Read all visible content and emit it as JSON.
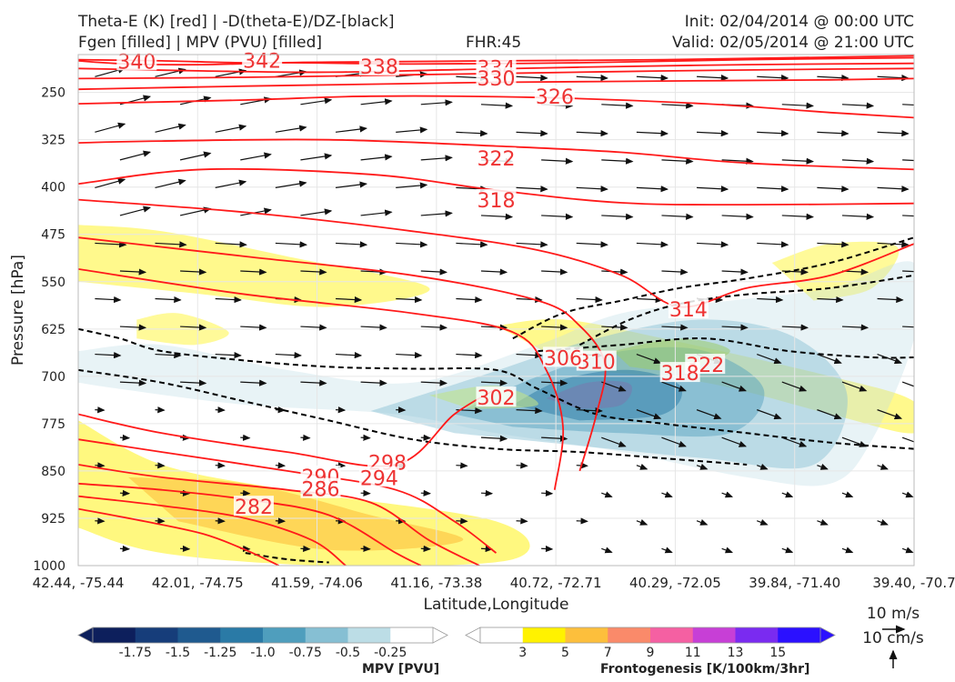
{
  "header": {
    "title_line1": "Theta-E (K) [red] | -D(theta-E)/DZ-[black]",
    "title_line2": "Fgen [filled] | MPV (PVU) [filled]",
    "fhr": "FHR:45",
    "init": "Init: 02/04/2014 @ 00:00 UTC",
    "valid": "Valid: 02/05/2014 @ 21:00 UTC"
  },
  "chart_data": {
    "type": "cross-section",
    "xlabel": "Latitude,Longitude",
    "ylabel": "Pressure [hPa]",
    "x_ticks": [
      "42.44, -75.44",
      "42.01, -74.75",
      "41.59, -74.06",
      "41.16, -73.38",
      "40.72, -72.71",
      "40.29, -72.05",
      "39.84, -71.40",
      "39.40, -70.7"
    ],
    "y_ticks": [
      250,
      325,
      400,
      475,
      550,
      625,
      700,
      775,
      850,
      925,
      1000
    ],
    "ylim": [
      190,
      1000
    ],
    "y_inverted": true,
    "grid": true,
    "theta_e_contours": [
      {
        "value": 340,
        "label": "340",
        "points": [
          [
            0.0,
            200
          ],
          [
            0.06,
            205
          ],
          [
            0.15,
            206
          ],
          [
            0.25,
            203
          ],
          [
            0.4,
            205
          ],
          [
            0.6,
            203
          ],
          [
            0.8,
            198
          ],
          [
            1.0,
            195
          ]
        ]
      },
      {
        "value": 342,
        "label": "342",
        "points": [
          [
            0.0,
            198
          ],
          [
            0.1,
            200
          ],
          [
            0.2,
            203
          ],
          [
            0.3,
            202
          ],
          [
            0.5,
            200
          ],
          [
            0.7,
            198
          ],
          [
            1.0,
            192
          ]
        ]
      },
      {
        "value": 338,
        "label": "338",
        "points": [
          [
            0.0,
            212
          ],
          [
            0.15,
            216
          ],
          [
            0.3,
            218
          ],
          [
            0.45,
            214
          ],
          [
            0.6,
            210
          ],
          [
            0.8,
            206
          ],
          [
            1.0,
            204
          ]
        ]
      },
      {
        "value": 334,
        "label": "334",
        "points": [
          [
            0.0,
            228
          ],
          [
            0.2,
            226
          ],
          [
            0.4,
            222
          ],
          [
            0.5,
            220
          ],
          [
            0.7,
            216
          ],
          [
            0.9,
            213
          ],
          [
            1.0,
            212
          ]
        ]
      },
      {
        "value": 330,
        "label": "330",
        "points": [
          [
            0.0,
            245
          ],
          [
            0.2,
            240
          ],
          [
            0.4,
            236
          ],
          [
            0.5,
            234
          ],
          [
            0.7,
            232
          ],
          [
            0.9,
            230
          ],
          [
            1.0,
            228
          ]
        ]
      },
      {
        "value": 326,
        "label": "326",
        "points": [
          [
            0.0,
            268
          ],
          [
            0.2,
            262
          ],
          [
            0.35,
            256
          ],
          [
            0.55,
            258
          ],
          [
            0.75,
            268
          ],
          [
            0.9,
            282
          ],
          [
            1.0,
            290
          ]
        ]
      },
      {
        "value": 322,
        "label": "322",
        "points": [
          [
            0.0,
            330
          ],
          [
            0.1,
            327
          ],
          [
            0.3,
            325
          ],
          [
            0.5,
            335
          ],
          [
            0.65,
            345
          ],
          [
            0.8,
            362
          ],
          [
            1.0,
            372
          ]
        ]
      },
      {
        "value": 318,
        "label": "318",
        "points": [
          [
            0.0,
            395
          ],
          [
            0.15,
            372
          ],
          [
            0.35,
            380
          ],
          [
            0.5,
            405
          ],
          [
            0.65,
            425
          ],
          [
            0.8,
            428
          ],
          [
            1.0,
            426
          ]
        ]
      },
      {
        "value": 314,
        "label": "314",
        "points": [
          [
            0.0,
            420
          ],
          [
            0.2,
            440
          ],
          [
            0.4,
            470
          ],
          [
            0.55,
            500
          ],
          [
            0.65,
            540
          ],
          [
            0.72,
            590
          ],
          [
            0.8,
            560
          ],
          [
            0.9,
            540
          ],
          [
            1.0,
            490
          ]
        ]
      },
      {
        "value": 310,
        "label": "310",
        "points": [
          [
            0.0,
            480
          ],
          [
            0.2,
            510
          ],
          [
            0.4,
            540
          ],
          [
            0.55,
            580
          ],
          [
            0.6,
            620
          ],
          [
            0.63,
            680
          ],
          [
            0.62,
            760
          ],
          [
            0.6,
            850
          ]
        ]
      },
      {
        "value": 306,
        "label": "306",
        "points": [
          [
            0.0,
            530
          ],
          [
            0.2,
            570
          ],
          [
            0.4,
            600
          ],
          [
            0.52,
            630
          ],
          [
            0.56,
            690
          ],
          [
            0.58,
            780
          ],
          [
            0.57,
            880
          ]
        ]
      },
      {
        "value": 302,
        "label": "302",
        "points": [
          [
            0.0,
            760
          ],
          [
            0.1,
            790
          ],
          [
            0.25,
            820
          ],
          [
            0.38,
            840
          ],
          [
            0.45,
            760
          ],
          [
            0.5,
            720
          ]
        ]
      },
      {
        "value": 298,
        "label": "298",
        "points": [
          [
            0.0,
            800
          ],
          [
            0.1,
            820
          ],
          [
            0.25,
            850
          ],
          [
            0.38,
            880
          ],
          [
            0.45,
            930
          ],
          [
            0.5,
            980
          ]
        ]
      },
      {
        "value": 294,
        "label": "294",
        "points": [
          [
            0.0,
            840
          ],
          [
            0.1,
            860
          ],
          [
            0.25,
            880
          ],
          [
            0.35,
            900
          ],
          [
            0.42,
            960
          ],
          [
            0.48,
            1000
          ]
        ]
      },
      {
        "value": 290,
        "label": "290",
        "points": [
          [
            0.0,
            870
          ],
          [
            0.1,
            880
          ],
          [
            0.2,
            895
          ],
          [
            0.3,
            920
          ],
          [
            0.38,
            980
          ],
          [
            0.41,
            1000
          ]
        ]
      },
      {
        "value": 286,
        "label": "286",
        "points": [
          [
            0.0,
            890
          ],
          [
            0.1,
            905
          ],
          [
            0.2,
            925
          ],
          [
            0.28,
            960
          ],
          [
            0.32,
            1000
          ]
        ]
      },
      {
        "value": 282,
        "label": "282",
        "points": [
          [
            0.0,
            910
          ],
          [
            0.08,
            930
          ],
          [
            0.15,
            950
          ],
          [
            0.2,
            975
          ],
          [
            0.24,
            1000
          ]
        ]
      }
    ],
    "theta_e_labels": [
      {
        "text": "340",
        "x": 0.07,
        "p": 202
      },
      {
        "text": "342",
        "x": 0.22,
        "p": 201
      },
      {
        "text": "338",
        "x": 0.36,
        "p": 210
      },
      {
        "text": "334",
        "x": 0.5,
        "p": 212
      },
      {
        "text": "330",
        "x": 0.5,
        "p": 229
      },
      {
        "text": "326",
        "x": 0.57,
        "p": 258
      },
      {
        "text": "322",
        "x": 0.5,
        "p": 356
      },
      {
        "text": "318",
        "x": 0.5,
        "p": 422
      },
      {
        "text": "314",
        "x": 0.73,
        "p": 595
      },
      {
        "text": "322",
        "x": 0.75,
        "p": 683
      },
      {
        "text": "318",
        "x": 0.72,
        "p": 696
      },
      {
        "text": "310",
        "x": 0.62,
        "p": 678
      },
      {
        "text": "306",
        "x": 0.58,
        "p": 672
      },
      {
        "text": "302",
        "x": 0.5,
        "p": 735
      },
      {
        "text": "298",
        "x": 0.37,
        "p": 838
      },
      {
        "text": "294",
        "x": 0.36,
        "p": 862
      },
      {
        "text": "290",
        "x": 0.29,
        "p": 860
      },
      {
        "text": "286",
        "x": 0.29,
        "p": 880
      },
      {
        "text": "282",
        "x": 0.21,
        "p": 908
      }
    ],
    "stability_contours": [
      {
        "points": [
          [
            0.0,
            625
          ],
          [
            0.05,
            640
          ],
          [
            0.1,
            660
          ],
          [
            0.2,
            675
          ],
          [
            0.3,
            685
          ],
          [
            0.4,
            688
          ],
          [
            0.5,
            690
          ],
          [
            0.55,
            720
          ],
          [
            0.62,
            760
          ],
          [
            0.7,
            775
          ],
          [
            0.8,
            790
          ],
          [
            0.9,
            805
          ],
          [
            1.0,
            815
          ]
        ]
      },
      {
        "points": [
          [
            0.0,
            690
          ],
          [
            0.1,
            710
          ],
          [
            0.2,
            740
          ],
          [
            0.3,
            770
          ],
          [
            0.4,
            800
          ],
          [
            0.5,
            815
          ],
          [
            0.6,
            820
          ],
          [
            0.7,
            830
          ],
          [
            0.8,
            840
          ]
        ]
      },
      {
        "points": [
          [
            0.52,
            640
          ],
          [
            0.58,
            600
          ],
          [
            0.65,
            580
          ],
          [
            0.72,
            560
          ],
          [
            0.8,
            545
          ],
          [
            0.9,
            520
          ],
          [
            1.0,
            480
          ]
        ]
      },
      {
        "points": [
          [
            0.6,
            650
          ],
          [
            0.66,
            610
          ],
          [
            0.72,
            585
          ],
          [
            0.8,
            570
          ],
          [
            0.9,
            560
          ],
          [
            1.0,
            540
          ]
        ]
      },
      {
        "points": [
          [
            0.55,
            660
          ],
          [
            0.65,
            650
          ],
          [
            0.75,
            640
          ],
          [
            0.85,
            660
          ],
          [
            0.95,
            670
          ],
          [
            1.0,
            670
          ]
        ]
      },
      {
        "points": [
          [
            0.2,
            980
          ],
          [
            0.25,
            990
          ],
          [
            0.3,
            995
          ]
        ]
      }
    ],
    "mpv": {
      "colorbar_ticks": [
        "-1.75",
        "-1.5",
        "-1.25",
        "-1.0",
        "-0.75",
        "-0.5",
        "-0.25"
      ],
      "title": "MPV [PVU]",
      "colors": [
        "#0d1f5c",
        "#163d7a",
        "#1f5a8f",
        "#2a7aa6",
        "#4f9ebd",
        "#86bfd3",
        "#bcdde6",
        "#ffffff"
      ]
    },
    "fgen": {
      "colorbar_ticks": [
        "3",
        "5",
        "7",
        "9",
        "11",
        "13",
        "15"
      ],
      "title": "Frontogenesis [K/100km/3hr]",
      "colors": [
        "#ffffff",
        "#fff200",
        "#fdbf3c",
        "#fa8a6a",
        "#f560a2",
        "#c73fd6",
        "#7a2bf0",
        "#2b10ff"
      ]
    },
    "wind_reference": {
      "horizontal": "10 m/s",
      "vertical": "10 cm/s"
    }
  }
}
